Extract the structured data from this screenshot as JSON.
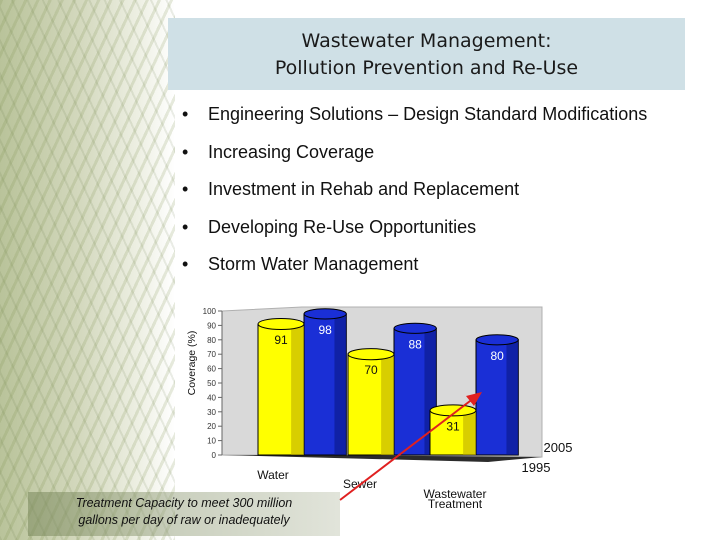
{
  "slide": {
    "title_line1": "Wastewater Management:",
    "title_line2": "Pollution Prevention and Re-Use",
    "bullet_marker": "•",
    "bullets": [
      "Engineering Solutions – Design Standard Modifications",
      "Increasing Coverage",
      "Investment in Rehab and Replacement",
      "Developing Re-Use Opportunities",
      "Storm Water Management"
    ],
    "caption_line1": "Treatment Capacity to meet 300 million",
    "caption_line2": "gallons per day of raw or inadequately"
  },
  "chart_data": {
    "type": "bar",
    "ylabel": "Coverage (%)",
    "ylim": [
      0,
      100
    ],
    "yticks": [
      "0",
      "10",
      "20",
      "30",
      "40",
      "50",
      "60",
      "70",
      "80",
      "90",
      "100"
    ],
    "categories": [
      "Water",
      "Sewer",
      "Wastewater Treatment"
    ],
    "series": [
      {
        "name": "1995",
        "values": [
          91,
          70,
          31
        ],
        "color": "#ffff00"
      },
      {
        "name": "2005",
        "values": [
          98,
          88,
          80
        ],
        "color": "#1a2fd6"
      }
    ],
    "annotation_color": "#e02020",
    "grid": false,
    "style": "3d"
  }
}
